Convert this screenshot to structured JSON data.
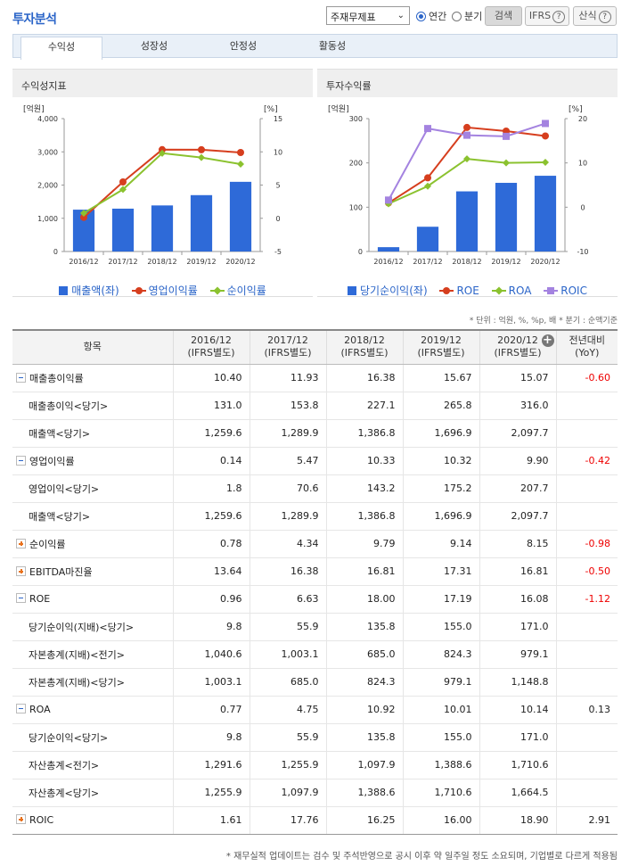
{
  "header": {
    "title": "투자분석",
    "select_value": "주재무제표",
    "radio_annual": "연간",
    "radio_quarter": "분기",
    "search_button": "검색",
    "ifrs_button": "IFRS",
    "formula_button": "산식"
  },
  "tabs": [
    {
      "label": "수익성",
      "active": true
    },
    {
      "label": "성장성",
      "active": false
    },
    {
      "label": "안정성",
      "active": false
    },
    {
      "label": "활동성",
      "active": false
    }
  ],
  "chart_left": {
    "title": "수익성지표",
    "unit_left": "[억원]",
    "unit_right": "[%]",
    "legend": [
      "매출액(좌)",
      "영업이익률",
      "순이익률"
    ]
  },
  "chart_right": {
    "title": "투자수익률",
    "unit_left": "[억원]",
    "unit_right": "[%]",
    "legend": [
      "당기순이익(좌)",
      "ROE",
      "ROA",
      "ROIC"
    ]
  },
  "chart_data": [
    {
      "type": "bar",
      "title": "수익성지표",
      "categories": [
        "2016/12",
        "2017/12",
        "2018/12",
        "2019/12",
        "2020/12"
      ],
      "ylim_left": [
        0,
        4000
      ],
      "yticks_left": [
        0,
        1000,
        2000,
        3000,
        4000
      ],
      "ylim_right": [
        -5,
        15
      ],
      "yticks_right": [
        -5,
        0,
        5,
        10,
        15
      ],
      "series": [
        {
          "name": "매출액(좌)",
          "type": "bar",
          "axis": "left",
          "color": "#2e6ad8",
          "values": [
            1259.6,
            1289.9,
            1386.8,
            1696.9,
            2097.7
          ]
        },
        {
          "name": "영업이익률",
          "type": "line",
          "axis": "right",
          "color": "#d63e1e",
          "marker": "circle",
          "values": [
            0.14,
            5.47,
            10.33,
            10.32,
            9.9
          ]
        },
        {
          "name": "순이익률",
          "type": "line",
          "axis": "right",
          "color": "#8bc22f",
          "marker": "diamond",
          "values": [
            0.78,
            4.34,
            9.79,
            9.14,
            8.15
          ]
        }
      ]
    },
    {
      "type": "bar",
      "title": "투자수익률",
      "categories": [
        "2016/12",
        "2017/12",
        "2018/12",
        "2019/12",
        "2020/12"
      ],
      "ylim_left": [
        0,
        300
      ],
      "yticks_left": [
        0,
        100,
        200,
        300
      ],
      "ylim_right": [
        -10,
        20
      ],
      "yticks_right": [
        -10,
        0,
        10,
        20
      ],
      "series": [
        {
          "name": "당기순이익(좌)",
          "type": "bar",
          "axis": "left",
          "color": "#2e6ad8",
          "values": [
            9.8,
            55.9,
            135.8,
            155.0,
            171.0
          ]
        },
        {
          "name": "ROE",
          "type": "line",
          "axis": "right",
          "color": "#d63e1e",
          "marker": "circle",
          "values": [
            0.96,
            6.63,
            18.0,
            17.19,
            16.08
          ]
        },
        {
          "name": "ROA",
          "type": "line",
          "axis": "right",
          "color": "#8bc22f",
          "marker": "diamond",
          "values": [
            0.77,
            4.75,
            10.92,
            10.01,
            10.14
          ]
        },
        {
          "name": "ROIC",
          "type": "line",
          "axis": "right",
          "color": "#a483e0",
          "marker": "square",
          "values": [
            1.61,
            17.76,
            16.25,
            16.0,
            18.9
          ]
        }
      ]
    }
  ],
  "unit_note": "* 단위 : 억원, %, %p, 배   * 분기 : 순액기준",
  "table": {
    "head_item": "항목",
    "columns": [
      {
        "year": "2016/12",
        "basis": "(IFRS별도)"
      },
      {
        "year": "2017/12",
        "basis": "(IFRS별도)"
      },
      {
        "year": "2018/12",
        "basis": "(IFRS별도)"
      },
      {
        "year": "2019/12",
        "basis": "(IFRS별도)"
      },
      {
        "year": "2020/12",
        "basis": "(IFRS별도)"
      }
    ],
    "yoy_head": [
      "전년대비",
      "(YoY)"
    ],
    "rows": [
      {
        "label": "매출총이익률",
        "toggle": "minus",
        "values": [
          "10.40",
          "11.93",
          "16.38",
          "15.67",
          "15.07"
        ],
        "yoy": "-0.60"
      },
      {
        "label": "매출총이익<당기>",
        "sub": true,
        "values": [
          "131.0",
          "153.8",
          "227.1",
          "265.8",
          "316.0"
        ],
        "yoy": ""
      },
      {
        "label": "매출액<당기>",
        "sub": true,
        "values": [
          "1,259.6",
          "1,289.9",
          "1,386.8",
          "1,696.9",
          "2,097.7"
        ],
        "yoy": ""
      },
      {
        "label": "영업이익률",
        "toggle": "minus",
        "values": [
          "0.14",
          "5.47",
          "10.33",
          "10.32",
          "9.90"
        ],
        "yoy": "-0.42"
      },
      {
        "label": "영업이익<당기>",
        "sub": true,
        "values": [
          "1.8",
          "70.6",
          "143.2",
          "175.2",
          "207.7"
        ],
        "yoy": ""
      },
      {
        "label": "매출액<당기>",
        "sub": true,
        "values": [
          "1,259.6",
          "1,289.9",
          "1,386.8",
          "1,696.9",
          "2,097.7"
        ],
        "yoy": ""
      },
      {
        "label": "순이익률",
        "toggle": "plus",
        "values": [
          "0.78",
          "4.34",
          "9.79",
          "9.14",
          "8.15"
        ],
        "yoy": "-0.98"
      },
      {
        "label": "EBITDA마진율",
        "toggle": "plus",
        "values": [
          "13.64",
          "16.38",
          "16.81",
          "17.31",
          "16.81"
        ],
        "yoy": "-0.50"
      },
      {
        "label": "ROE",
        "toggle": "minus",
        "values": [
          "0.96",
          "6.63",
          "18.00",
          "17.19",
          "16.08"
        ],
        "yoy": "-1.12"
      },
      {
        "label": "당기순이익(지배)<당기>",
        "sub": true,
        "values": [
          "9.8",
          "55.9",
          "135.8",
          "155.0",
          "171.0"
        ],
        "yoy": ""
      },
      {
        "label": "자본총계(지배)<전기>",
        "sub": true,
        "values": [
          "1,040.6",
          "1,003.1",
          "685.0",
          "824.3",
          "979.1"
        ],
        "yoy": ""
      },
      {
        "label": "자본총계(지배)<당기>",
        "sub": true,
        "values": [
          "1,003.1",
          "685.0",
          "824.3",
          "979.1",
          "1,148.8"
        ],
        "yoy": ""
      },
      {
        "label": "ROA",
        "toggle": "minus",
        "values": [
          "0.77",
          "4.75",
          "10.92",
          "10.01",
          "10.14"
        ],
        "yoy": "0.13"
      },
      {
        "label": "당기순이익<당기>",
        "sub": true,
        "values": [
          "9.8",
          "55.9",
          "135.8",
          "155.0",
          "171.0"
        ],
        "yoy": ""
      },
      {
        "label": "자산총계<전기>",
        "sub": true,
        "values": [
          "1,291.6",
          "1,255.9",
          "1,097.9",
          "1,388.6",
          "1,710.6"
        ],
        "yoy": ""
      },
      {
        "label": "자산총계<당기>",
        "sub": true,
        "values": [
          "1,255.9",
          "1,097.9",
          "1,388.6",
          "1,710.6",
          "1,664.5"
        ],
        "yoy": ""
      },
      {
        "label": "ROIC",
        "toggle": "plus",
        "values": [
          "1.61",
          "17.76",
          "16.25",
          "16.00",
          "18.90"
        ],
        "yoy": "2.91"
      }
    ]
  },
  "footer_note": "* 재무실적 업데이트는 검수 및 주석반영으로 공시 이후 약 일주일 정도 소요되며, 기업별로 다르게 적용됨"
}
